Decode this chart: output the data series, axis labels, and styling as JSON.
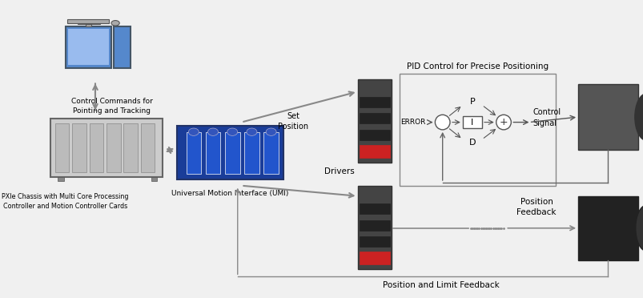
{
  "bg_color": "#f0f0f0",
  "labels": {
    "pc_label": "Control Commands for\nPointing and Tracking",
    "pxie_label": "PXIe Chassis with Multi Core Processing\nController and Motion Controller Cards",
    "umi_label": "Universal Motion Interface (UMI)",
    "set_position": "Set\nPosition",
    "drivers": "Drivers",
    "pid_title": "PID Control for Precise Positioning",
    "error": "ERROR",
    "p": "P",
    "i": "I",
    "d": "D",
    "plus": "+",
    "control_signal": "Control\nSignal",
    "position_feedback": "Position\nFeedback",
    "pos_limit_feedback": "Position and Limit Feedback"
  },
  "colors": {
    "arrow": "#888888",
    "text": "#000000",
    "pc_blue": "#5588cc",
    "pc_light": "#99bbee",
    "pc_gray": "#aaaaaa",
    "pxie_outer": "#cccccc",
    "pxie_inner": "#bbbbbb",
    "umi_dark": "#1a3d99",
    "umi_light": "#2255cc",
    "driver_dark": "#444444",
    "driver_red": "#cc2222",
    "motor_dark": "#333333",
    "motor_medium": "#555555",
    "pid_box": "#888888",
    "circle_edge": "#555555"
  }
}
